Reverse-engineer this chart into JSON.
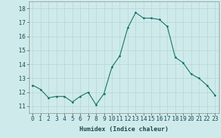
{
  "x": [
    0,
    1,
    2,
    3,
    4,
    5,
    6,
    7,
    8,
    9,
    10,
    11,
    12,
    13,
    14,
    15,
    16,
    17,
    18,
    19,
    20,
    21,
    22,
    23
  ],
  "y": [
    12.5,
    12.2,
    11.6,
    11.7,
    11.7,
    11.3,
    11.7,
    12.0,
    11.1,
    11.9,
    13.8,
    14.6,
    16.6,
    17.7,
    17.3,
    17.3,
    17.2,
    16.7,
    14.5,
    14.1,
    13.3,
    13.0,
    12.5,
    11.8
  ],
  "xlabel": "Humidex (Indice chaleur)",
  "xlim": [
    -0.5,
    23.5
  ],
  "ylim": [
    10.5,
    18.5
  ],
  "yticks": [
    11,
    12,
    13,
    14,
    15,
    16,
    17,
    18
  ],
  "xticks": [
    0,
    1,
    2,
    3,
    4,
    5,
    6,
    7,
    8,
    9,
    10,
    11,
    12,
    13,
    14,
    15,
    16,
    17,
    18,
    19,
    20,
    21,
    22,
    23
  ],
  "line_color": "#1a7a6e",
  "marker_color": "#1a7a6e",
  "bg_color": "#ceeaea",
  "grid_color": "#b8d8d8",
  "label_fontsize": 6.5,
  "tick_fontsize": 6.0
}
